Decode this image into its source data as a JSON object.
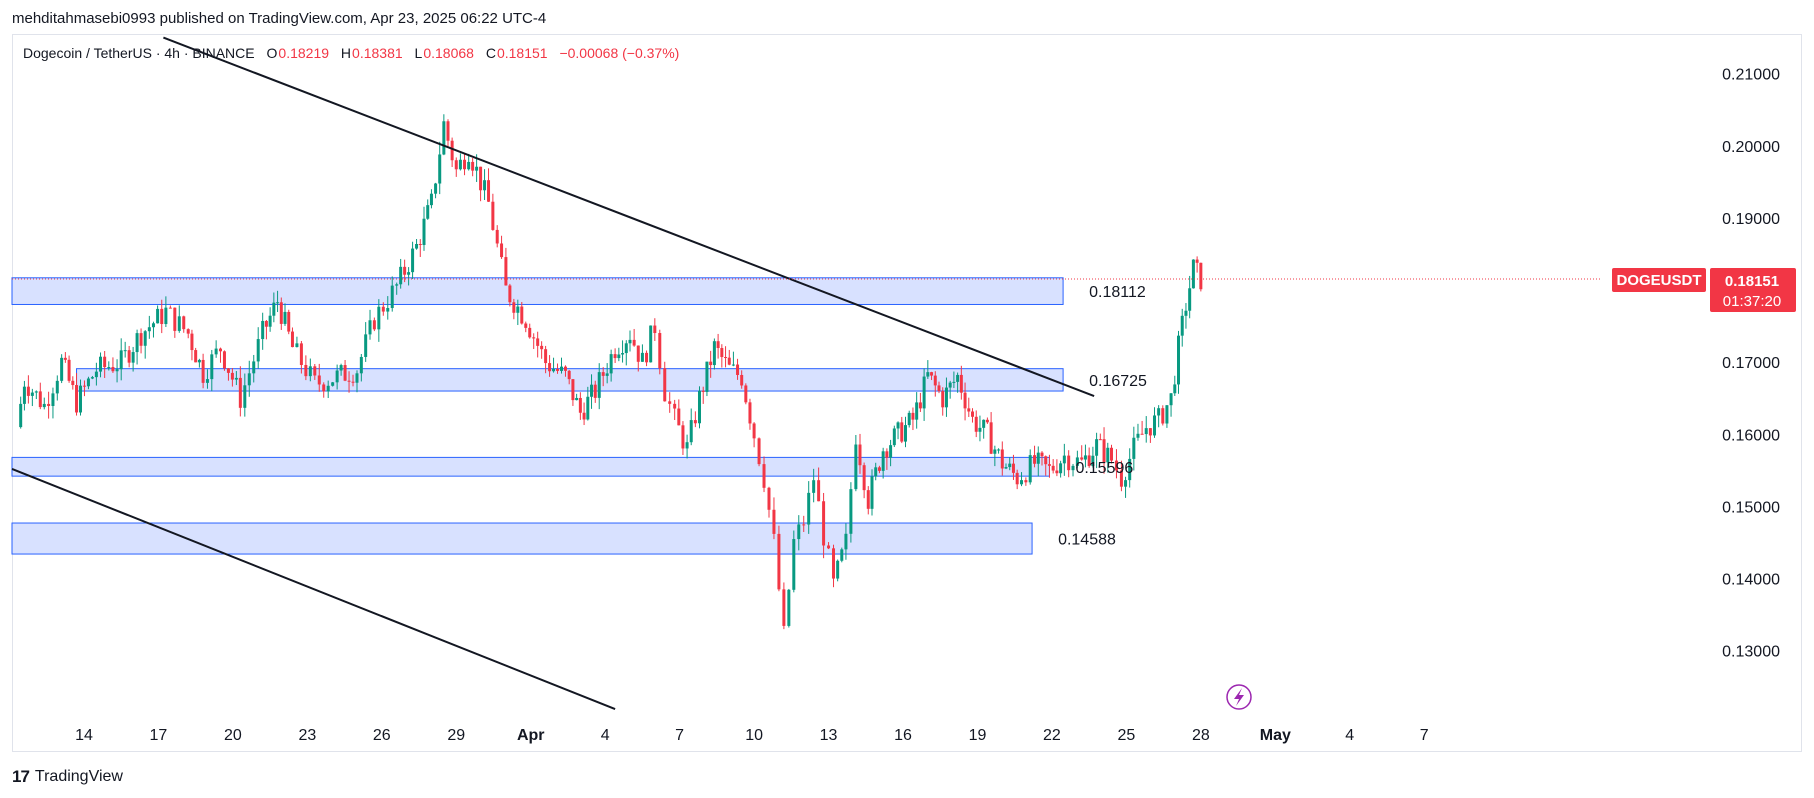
{
  "header": {
    "published_line": "mehditahmasebi0993 published on TradingView.com, Apr 23, 2025 06:22 UTC-4"
  },
  "legend": {
    "symbol": "Dogecoin / TetherUS · 4h · BINANCE",
    "open_key": "O",
    "open": "0.18219",
    "high_key": "H",
    "high": "0.18381",
    "low_key": "L",
    "low": "0.18068",
    "close_key": "C",
    "close": "0.18151",
    "change": "−0.00068 (−0.37%)"
  },
  "price_tag": {
    "ticker": "DOGEUSDT",
    "price": "0.18151",
    "countdown": "01:37:20",
    "color": "#f23645"
  },
  "footer": {
    "brand": "TradingView",
    "mark": "17"
  },
  "colors": {
    "up": "#089981",
    "down": "#f23645",
    "zone_fill": "#d1dcff",
    "zone_stroke": "#2962ff",
    "trendline": "#131722"
  },
  "chart_data": {
    "type": "candlestick",
    "title": "Dogecoin / TetherUS · 4h · BINANCE",
    "x_ticks": [
      "14",
      "17",
      "20",
      "23",
      "26",
      "29",
      "Apr",
      "4",
      "7",
      "10",
      "13",
      "16",
      "19",
      "22",
      "25",
      "28",
      "May",
      "4",
      "7"
    ],
    "x_tick_day_index": [
      0,
      3,
      6,
      9,
      12,
      15,
      18,
      21,
      24,
      27,
      30,
      33,
      36,
      39,
      42,
      45,
      48,
      51,
      54
    ],
    "y_ticks": [
      "0.21000",
      "0.20000",
      "0.19000",
      "0.17000",
      "0.16000",
      "0.15000",
      "0.14000",
      "0.13000"
    ],
    "ylim": [
      0.1215,
      0.2155
    ],
    "xlim_days": [
      -2.9,
      63.5
    ],
    "zones": [
      {
        "label": "0.18112",
        "low": 0.178,
        "high": 0.1817,
        "end_day": 39.45
      },
      {
        "label": "0.16725",
        "low": 0.166,
        "high": 0.1691,
        "start_day": -0.3,
        "end_day": 39.45
      },
      {
        "label": "0.15596",
        "low": 0.1542,
        "high": 0.1568,
        "end_day": 38.9
      },
      {
        "label": "0.14588",
        "low": 0.1434,
        "high": 0.1477,
        "end_day": 38.2
      }
    ],
    "trendlines": [
      {
        "from": {
          "day": 3.2,
          "price": 0.215
        },
        "to": {
          "day": 40.7,
          "price": 0.1653
        }
      },
      {
        "from": {
          "day": -2.9,
          "price": 0.1552
        },
        "to": {
          "day": 21.4,
          "price": 0.1219
        }
      }
    ],
    "anchors": [
      {
        "day": -2.7,
        "price": 0.161
      },
      {
        "day": -2.4,
        "price": 0.1675
      },
      {
        "day": -1.6,
        "price": 0.164
      },
      {
        "day": -0.9,
        "price": 0.17
      },
      {
        "day": -0.3,
        "price": 0.1645
      },
      {
        "day": 0.5,
        "price": 0.169
      },
      {
        "day": 1.5,
        "price": 0.17
      },
      {
        "day": 2.3,
        "price": 0.174
      },
      {
        "day": 3.3,
        "price": 0.177
      },
      {
        "day": 4.2,
        "price": 0.174
      },
      {
        "day": 4.8,
        "price": 0.1685
      },
      {
        "day": 5.5,
        "price": 0.172
      },
      {
        "day": 6.3,
        "price": 0.165
      },
      {
        "day": 7.2,
        "price": 0.174
      },
      {
        "day": 7.8,
        "price": 0.1785
      },
      {
        "day": 8.4,
        "price": 0.172
      },
      {
        "day": 9.3,
        "price": 0.167
      },
      {
        "day": 10.2,
        "price": 0.168
      },
      {
        "day": 11.0,
        "price": 0.169
      },
      {
        "day": 11.7,
        "price": 0.176
      },
      {
        "day": 12.6,
        "price": 0.1805
      },
      {
        "day": 13.4,
        "price": 0.186
      },
      {
        "day": 14.0,
        "price": 0.192
      },
      {
        "day": 14.5,
        "price": 0.203
      },
      {
        "day": 15.0,
        "price": 0.1965
      },
      {
        "day": 15.5,
        "price": 0.1995
      },
      {
        "day": 16.3,
        "price": 0.192
      },
      {
        "day": 17.0,
        "price": 0.18
      },
      {
        "day": 17.8,
        "price": 0.176
      },
      {
        "day": 18.6,
        "price": 0.17
      },
      {
        "day": 19.4,
        "price": 0.168
      },
      {
        "day": 20.0,
        "price": 0.163
      },
      {
        "day": 20.6,
        "price": 0.166
      },
      {
        "day": 21.4,
        "price": 0.172
      },
      {
        "day": 22.0,
        "price": 0.174
      },
      {
        "day": 22.5,
        "price": 0.17
      },
      {
        "day": 23.0,
        "price": 0.175
      },
      {
        "day": 23.4,
        "price": 0.166
      },
      {
        "day": 23.8,
        "price": 0.162
      },
      {
        "day": 24.3,
        "price": 0.158
      },
      {
        "day": 24.8,
        "price": 0.165
      },
      {
        "day": 25.4,
        "price": 0.172
      },
      {
        "day": 26.0,
        "price": 0.169
      },
      {
        "day": 26.5,
        "price": 0.168
      },
      {
        "day": 27.0,
        "price": 0.16
      },
      {
        "day": 27.4,
        "price": 0.154
      },
      {
        "day": 27.8,
        "price": 0.145
      },
      {
        "day": 28.2,
        "price": 0.132
      },
      {
        "day": 28.6,
        "price": 0.145
      },
      {
        "day": 29.0,
        "price": 0.148
      },
      {
        "day": 29.4,
        "price": 0.154
      },
      {
        "day": 29.8,
        "price": 0.146
      },
      {
        "day": 30.2,
        "price": 0.139
      },
      {
        "day": 30.7,
        "price": 0.145
      },
      {
        "day": 31.1,
        "price": 0.16
      },
      {
        "day": 31.6,
        "price": 0.151
      },
      {
        "day": 32.2,
        "price": 0.158
      },
      {
        "day": 32.8,
        "price": 0.16
      },
      {
        "day": 33.4,
        "price": 0.162
      },
      {
        "day": 34.0,
        "price": 0.168
      },
      {
        "day": 34.6,
        "price": 0.165
      },
      {
        "day": 35.2,
        "price": 0.168
      },
      {
        "day": 35.8,
        "price": 0.162
      },
      {
        "day": 36.4,
        "price": 0.16
      },
      {
        "day": 37.0,
        "price": 0.156
      },
      {
        "day": 37.6,
        "price": 0.154
      },
      {
        "day": 38.3,
        "price": 0.156
      },
      {
        "day": 38.9,
        "price": 0.155
      },
      {
        "day": 39.5,
        "price": 0.157
      },
      {
        "day": 40.2,
        "price": 0.156
      },
      {
        "day": 40.8,
        "price": 0.1585
      },
      {
        "day": 41.4,
        "price": 0.1565
      },
      {
        "day": 41.8,
        "price": 0.154
      },
      {
        "day": 42.3,
        "price": 0.158
      },
      {
        "day": 42.8,
        "price": 0.161
      },
      {
        "day": 43.3,
        "price": 0.162
      },
      {
        "day": 43.8,
        "price": 0.165
      },
      {
        "day": 44.1,
        "price": 0.172
      },
      {
        "day": 44.4,
        "price": 0.178
      },
      {
        "day": 44.7,
        "price": 0.183
      },
      {
        "day": 45.0,
        "price": 0.1815
      }
    ]
  }
}
